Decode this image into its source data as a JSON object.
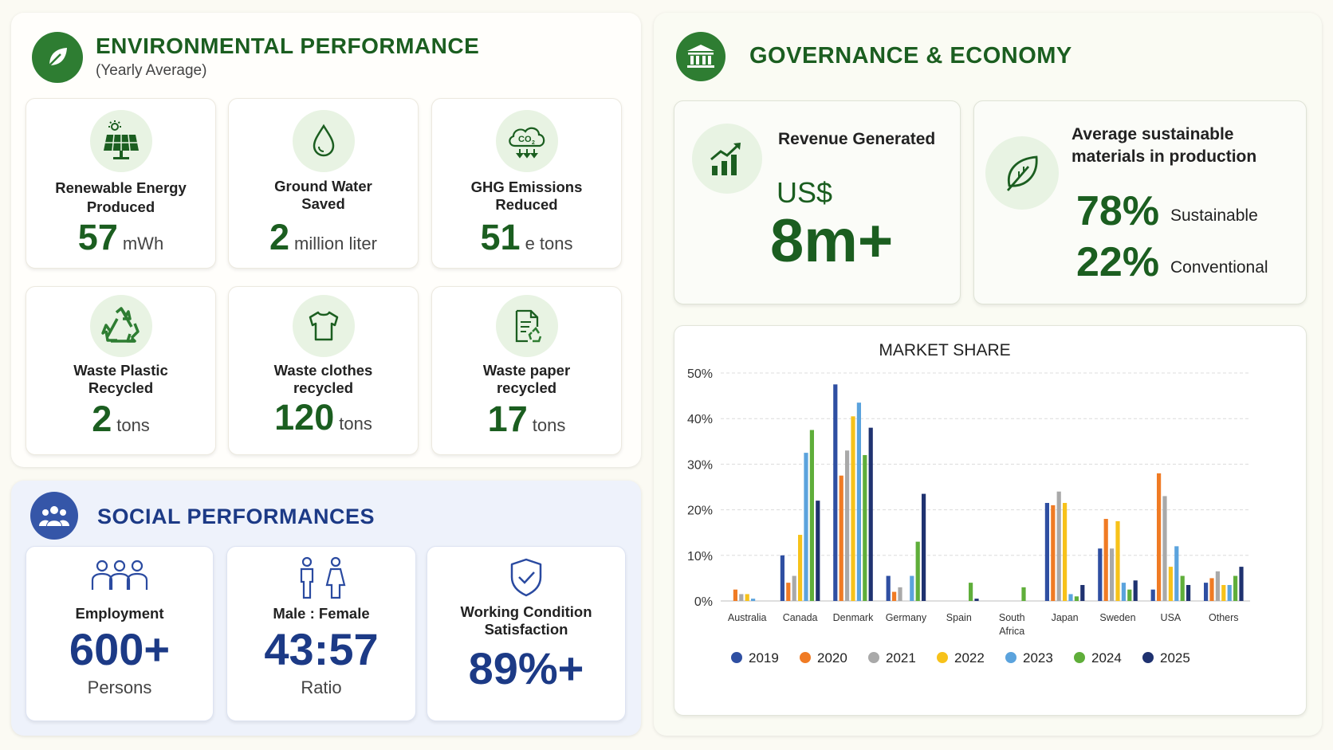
{
  "environmental": {
    "title": "ENVIRONMENTAL PERFORMANCE",
    "subtitle": "(Yearly Average)",
    "header_icon": "leaf-icon",
    "metrics": [
      {
        "label_line1": "Renewable Energy",
        "label_line2": "Produced",
        "value": "57",
        "unit": "mWh",
        "icon": "solar-panel-icon"
      },
      {
        "label_line1": "Ground Water",
        "label_line2": "Saved",
        "value": "2",
        "unit": "million liter",
        "icon": "water-drop-icon"
      },
      {
        "label_line1": "GHG Emissions",
        "label_line2": "Reduced",
        "value": "51",
        "unit": "e tons",
        "icon": "co2-cloud-icon"
      },
      {
        "label_line1": "Waste Plastic",
        "label_line2": "Recycled",
        "value": "2",
        "unit": "tons",
        "icon": "recycle-icon"
      },
      {
        "label_line1": "Waste clothes",
        "label_line2": "recycled",
        "value": "120",
        "unit": "tons",
        "icon": "tshirt-icon"
      },
      {
        "label_line1": "Waste paper",
        "label_line2": "recycled",
        "value": "17",
        "unit": "tons",
        "icon": "paper-recycle-icon"
      }
    ]
  },
  "social": {
    "title": "SOCIAL PERFORMANCES",
    "header_icon": "people-group-icon",
    "metrics": [
      {
        "label_line1": "Employment",
        "label_line2": "",
        "value": "600+",
        "sub": "Persons",
        "icon": "employees-icon"
      },
      {
        "label_line1": "Male : Female",
        "label_line2": "",
        "value": "43:57",
        "sub": "Ratio",
        "icon": "male-female-icon"
      },
      {
        "label_line1": "Working Condition",
        "label_line2": "Satisfaction",
        "value": "89%+",
        "sub": "",
        "icon": "shield-check-icon"
      }
    ]
  },
  "governance": {
    "title": "GOVERNANCE & ECONOMY",
    "header_icon": "bank-icon",
    "revenue": {
      "label": "Revenue Generated",
      "currency": "US$",
      "value": "8m+",
      "icon": "growth-chart-icon"
    },
    "materials": {
      "label_line1": "Average sustainable",
      "label_line2": "materials in production",
      "icon": "leaf-outline-icon",
      "sustainable_pct": "78%",
      "sustainable_label": "Sustainable",
      "conventional_pct": "22%",
      "conventional_label": "Conventional"
    }
  },
  "chart_data": {
    "type": "bar",
    "title": "MARKET SHARE",
    "xlabel": "",
    "ylabel": "",
    "ylim": [
      0,
      50
    ],
    "yticks": [
      0,
      10,
      20,
      30,
      40,
      50
    ],
    "ytick_labels": [
      "0%",
      "10%",
      "20%",
      "30%",
      "40%",
      "50%"
    ],
    "grid": true,
    "legend": "bottom",
    "categories": [
      "Australia",
      "Canada",
      "Denmark",
      "Germany",
      "Spain",
      "South Africa",
      "Japan",
      "Sweden",
      "USA",
      "Others"
    ],
    "category_lines": [
      [
        "Australia"
      ],
      [
        "Canada"
      ],
      [
        "Denmark"
      ],
      [
        "Germany"
      ],
      [
        "Spain"
      ],
      [
        "South",
        "Africa"
      ],
      [
        "Japan"
      ],
      [
        "Sweden"
      ],
      [
        "USA"
      ],
      [
        "Others"
      ]
    ],
    "series": [
      {
        "name": "2019",
        "color": "#2f4fa2",
        "values": [
          0,
          10,
          47.5,
          5.5,
          0,
          0,
          21.5,
          11.5,
          2.5,
          4
        ]
      },
      {
        "name": "2020",
        "color": "#f07b24",
        "values": [
          2.5,
          4,
          27.5,
          2,
          0,
          0,
          21,
          18,
          28,
          5
        ]
      },
      {
        "name": "2021",
        "color": "#a9a9a9",
        "values": [
          1.5,
          5.5,
          33,
          3,
          0,
          0,
          24,
          11.5,
          23,
          6.5
        ]
      },
      {
        "name": "2022",
        "color": "#f7c21a",
        "values": [
          1.5,
          14.5,
          40.5,
          0,
          0,
          0,
          21.5,
          17.5,
          7.5,
          3.5
        ]
      },
      {
        "name": "2023",
        "color": "#5ba3dd",
        "values": [
          0.5,
          32.5,
          43.5,
          5.5,
          0,
          0,
          1.5,
          4,
          12,
          3.5
        ]
      },
      {
        "name": "2024",
        "color": "#5fae3a",
        "values": [
          0,
          37.5,
          32,
          13,
          4,
          3,
          1,
          2.5,
          5.5,
          5.5
        ]
      },
      {
        "name": "2025",
        "color": "#1f3270",
        "values": [
          0,
          22,
          38,
          23.5,
          0.5,
          0,
          3.5,
          4.5,
          3.5,
          7.5
        ]
      }
    ]
  }
}
